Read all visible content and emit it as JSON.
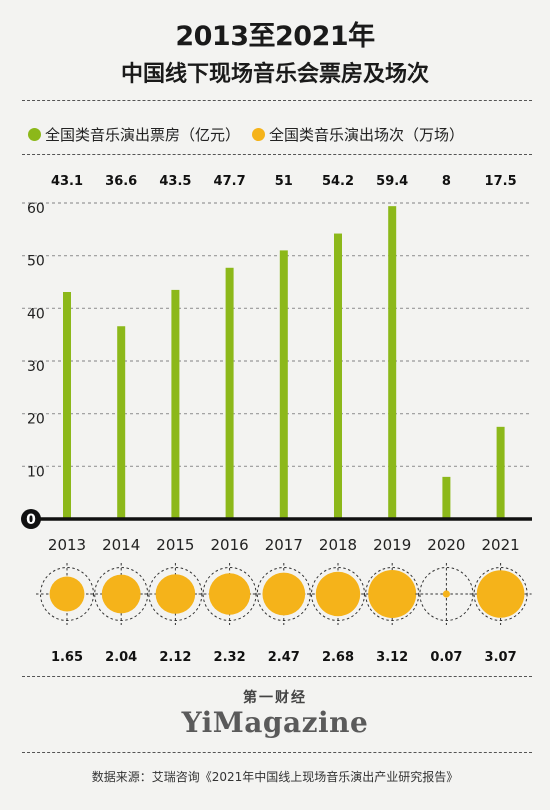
{
  "header": {
    "title_line1": "2013至2021年",
    "title_line2": "中国线下现场音乐会票房及场次"
  },
  "legend": [
    {
      "label": "全国类音乐演出票房（亿元）",
      "color": "#8cb81a"
    },
    {
      "label": "全国类音乐演出场次（万场）",
      "color": "#f5b31a"
    }
  ],
  "chart_data": {
    "type": "bar",
    "categories": [
      "2013",
      "2014",
      "2015",
      "2016",
      "2017",
      "2018",
      "2019",
      "2020",
      "2021"
    ],
    "series": [
      {
        "name": "全国类音乐演出票房（亿元）",
        "values": [
          43.1,
          36.6,
          43.5,
          47.7,
          51,
          54.2,
          59.4,
          8,
          17.5
        ],
        "value_labels": [
          "43.1",
          "36.6",
          "43.5",
          "47.7",
          "51",
          "54.2",
          "59.4",
          "8",
          "17.5"
        ],
        "color": "#8cb81a"
      },
      {
        "name": "全国类音乐演出场次（万场）",
        "values": [
          1.65,
          2.04,
          2.12,
          2.32,
          2.47,
          2.68,
          3.12,
          0.07,
          3.07
        ],
        "value_labels": [
          "1.65",
          "2.04",
          "2.12",
          "2.32",
          "2.47",
          "2.68",
          "3.12",
          "0.07",
          "3.07"
        ],
        "color": "#f5b31a"
      }
    ],
    "y_ticks": [
      0,
      10,
      20,
      30,
      40,
      50,
      60
    ],
    "ylim": [
      0,
      68
    ],
    "grid": true
  },
  "brand": {
    "cn": "第一财经",
    "en": "YiMagazine"
  },
  "source": "数据来源：艾瑞咨询《2021年中国线上现场音乐演出产业研究报告》"
}
